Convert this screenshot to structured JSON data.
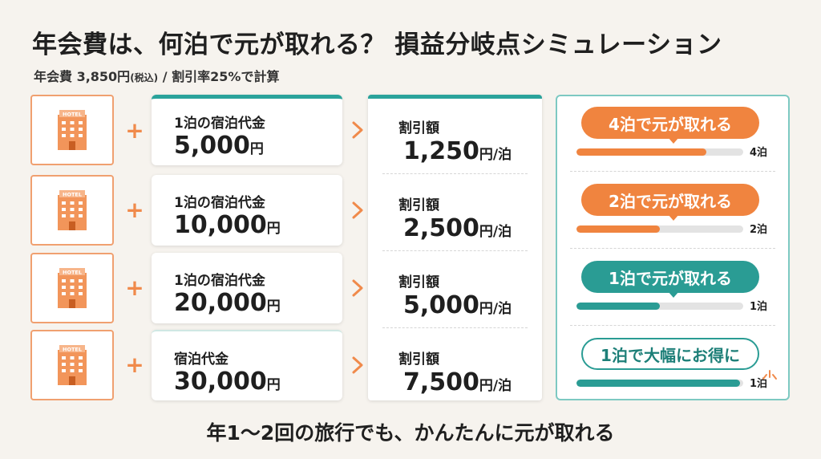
{
  "header": {
    "title": "年会費は、何泊で元が取れる？ 損益分岐点シミュレーション",
    "subtitle_main": "年会費 3,850円",
    "subtitle_tax": "(税込)",
    "subtitle_rest": " / 割引率25%で計算"
  },
  "icons": {
    "hotel": "hotel-building-icon",
    "plus": "plus-icon",
    "arrow": "chevron-right-icon",
    "sparkle": "sparkle-icon"
  },
  "hotel_sign": "HOTEL",
  "price_unit": "円",
  "disc_unit": "円/泊",
  "rows": [
    {
      "price_label": "1泊の宿泊代金",
      "price": "5,000",
      "disc_label": "割引額",
      "discount": "1,250",
      "result": "4泊で元が取れる",
      "nights": "4泊",
      "fill": 0.78,
      "style": "orange"
    },
    {
      "price_label": "1泊の宿泊代金",
      "price": "10,000",
      "disc_label": "割引額",
      "discount": "2,500",
      "result": "2泊で元が取れる",
      "nights": "2泊",
      "fill": 0.5,
      "style": "orange"
    },
    {
      "price_label": "1泊の宿泊代金",
      "price": "20,000",
      "disc_label": "割引額",
      "discount": "5,000",
      "result": "1泊で元が取れる",
      "nights": "1泊",
      "fill": 0.5,
      "style": "teal"
    },
    {
      "price_label": "宿泊代金",
      "price": "30,000",
      "disc_label": "割引額",
      "discount": "7,500",
      "result": "1泊で大幅にお得に",
      "nights": "1泊",
      "fill": 0.98,
      "style": "outline"
    }
  ],
  "colors": {
    "orange": "#f0843f",
    "teal": "#2a9c94",
    "background": "#f6f3ee"
  },
  "footer": "年1〜2回の旅行でも、かんたんに元が取れる"
}
